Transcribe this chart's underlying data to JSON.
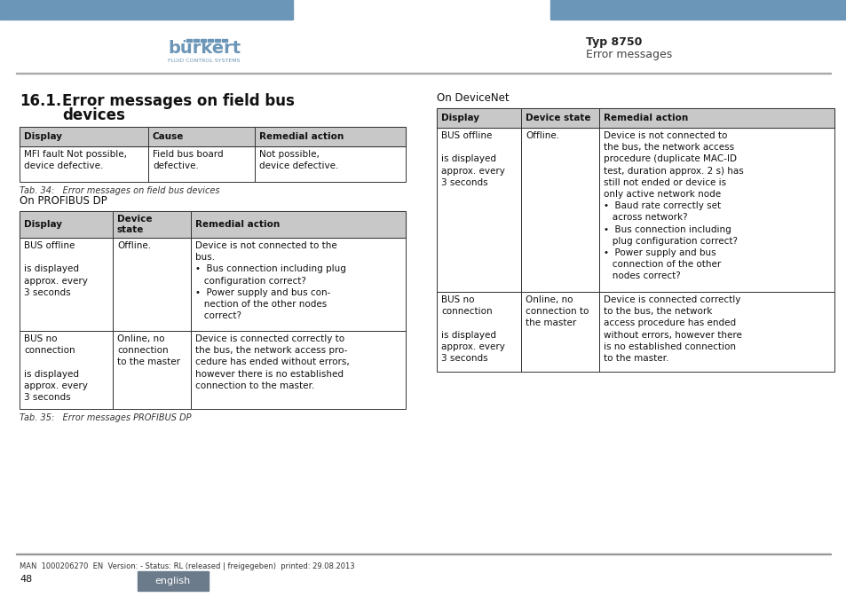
{
  "header_bg": "#6b96b8",
  "page_bg": "#ffffff",
  "table_header_bg": "#c8c8c8",
  "table_border": "#000000",
  "title": "16.1.  Error messages on field bus\n        devices",
  "typ_label": "Typ 8750",
  "err_label": "Error messages",
  "footer_text": "MAN  1000206270  EN  Version: - Status: RL (released | freigegeben)  printed: 29.08.2013",
  "page_num": "48",
  "lang_label": "english",
  "lang_bg": "#6b7b8b",
  "tab34_caption": "Tab. 34:   Error messages on field bus devices",
  "tab35_caption": "Tab. 35:   Error messages PROFIBUS DP",
  "profibus_label": "On PROFIBUS DP",
  "devicenet_label": "On DeviceNet",
  "table1": {
    "headers": [
      "Display",
      "Cause",
      "Remedial action"
    ],
    "rows": [
      [
        "MFI fault Not possible,\ndevice defective.",
        "Field bus board\ndefective.",
        "Not possible,\ndevice defective."
      ]
    ]
  },
  "table2": {
    "headers": [
      "Display",
      "Device\nstate",
      "Remedial action"
    ],
    "rows": [
      [
        "BUS offline\n\nis displayed\napprox. every\n3 seconds",
        "Offline.",
        "Device is not connected to the\nbus.\n•  Bus connection including plug\n   configuration correct?\n•  Power supply and bus con-\n   nection of the other nodes\n   correct?"
      ],
      [
        "BUS no\nconnection\n\nis displayed\napprox. every\n3 seconds",
        "Online, no\nconnection\nto the master",
        "Device is connected correctly to\nthe bus, the network access pro-\ncedure has ended without errors,\nhowever there is no established\nconnection to the master."
      ]
    ]
  },
  "table3": {
    "headers": [
      "Display",
      "Device state",
      "Remedial action"
    ],
    "rows": [
      [
        "BUS offline\n\nis displayed\napprox. every\n3 seconds",
        "Offline.",
        "Device is not connected to\nthe bus, the network access\nprocedure (duplicate MAC-ID\ntest, duration approx. 2 s) has\nstill not ended or device is\nonly active network node\n•  Baud rate correctly set\n   across network?\n•  Bus connection including\n   plug configuration correct?\n•  Power supply and bus\n   connection of the other\n   nodes correct?"
      ],
      [
        "BUS no\nconnection\n\nis displayed\napprox. every\n3 seconds",
        "Online, no\nconnection to\nthe master",
        "Device is connected correctly\nto the bus, the network\naccess procedure has ended\nwithout errors, however there\nis no established connection\nto the master."
      ]
    ]
  }
}
